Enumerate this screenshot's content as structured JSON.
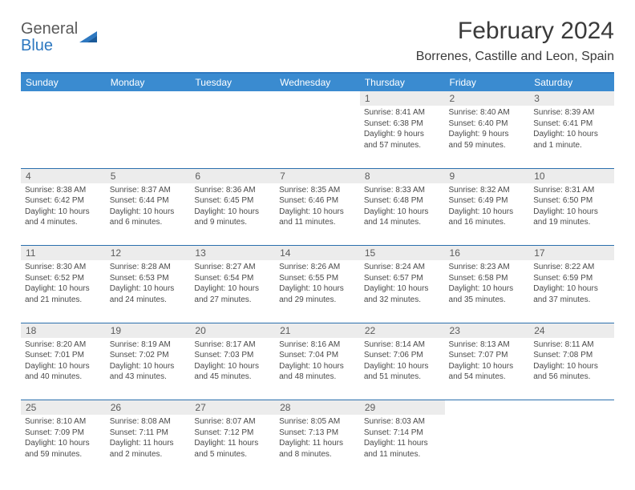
{
  "logo": {
    "word1": "General",
    "word2": "Blue"
  },
  "title": "February 2024",
  "location": "Borrenes, Castille and Leon, Spain",
  "colors": {
    "header_bg": "#3a8bd0",
    "rule": "#2e78c0",
    "daynum_bg": "#ececec",
    "cell_border": "#2b6fad",
    "text": "#4a4a4a"
  },
  "weekdays": [
    "Sunday",
    "Monday",
    "Tuesday",
    "Wednesday",
    "Thursday",
    "Friday",
    "Saturday"
  ],
  "labels": {
    "sunrise": "Sunrise:",
    "sunset": "Sunset:",
    "daylight": "Daylight:"
  },
  "weeks": [
    [
      null,
      null,
      null,
      null,
      {
        "n": "1",
        "sr": "8:41 AM",
        "ss": "6:38 PM",
        "dl1": "9 hours",
        "dl2": "and 57 minutes."
      },
      {
        "n": "2",
        "sr": "8:40 AM",
        "ss": "6:40 PM",
        "dl1": "9 hours",
        "dl2": "and 59 minutes."
      },
      {
        "n": "3",
        "sr": "8:39 AM",
        "ss": "6:41 PM",
        "dl1": "10 hours",
        "dl2": "and 1 minute."
      }
    ],
    [
      {
        "n": "4",
        "sr": "8:38 AM",
        "ss": "6:42 PM",
        "dl1": "10 hours",
        "dl2": "and 4 minutes."
      },
      {
        "n": "5",
        "sr": "8:37 AM",
        "ss": "6:44 PM",
        "dl1": "10 hours",
        "dl2": "and 6 minutes."
      },
      {
        "n": "6",
        "sr": "8:36 AM",
        "ss": "6:45 PM",
        "dl1": "10 hours",
        "dl2": "and 9 minutes."
      },
      {
        "n": "7",
        "sr": "8:35 AM",
        "ss": "6:46 PM",
        "dl1": "10 hours",
        "dl2": "and 11 minutes."
      },
      {
        "n": "8",
        "sr": "8:33 AM",
        "ss": "6:48 PM",
        "dl1": "10 hours",
        "dl2": "and 14 minutes."
      },
      {
        "n": "9",
        "sr": "8:32 AM",
        "ss": "6:49 PM",
        "dl1": "10 hours",
        "dl2": "and 16 minutes."
      },
      {
        "n": "10",
        "sr": "8:31 AM",
        "ss": "6:50 PM",
        "dl1": "10 hours",
        "dl2": "and 19 minutes."
      }
    ],
    [
      {
        "n": "11",
        "sr": "8:30 AM",
        "ss": "6:52 PM",
        "dl1": "10 hours",
        "dl2": "and 21 minutes."
      },
      {
        "n": "12",
        "sr": "8:28 AM",
        "ss": "6:53 PM",
        "dl1": "10 hours",
        "dl2": "and 24 minutes."
      },
      {
        "n": "13",
        "sr": "8:27 AM",
        "ss": "6:54 PM",
        "dl1": "10 hours",
        "dl2": "and 27 minutes."
      },
      {
        "n": "14",
        "sr": "8:26 AM",
        "ss": "6:55 PM",
        "dl1": "10 hours",
        "dl2": "and 29 minutes."
      },
      {
        "n": "15",
        "sr": "8:24 AM",
        "ss": "6:57 PM",
        "dl1": "10 hours",
        "dl2": "and 32 minutes."
      },
      {
        "n": "16",
        "sr": "8:23 AM",
        "ss": "6:58 PM",
        "dl1": "10 hours",
        "dl2": "and 35 minutes."
      },
      {
        "n": "17",
        "sr": "8:22 AM",
        "ss": "6:59 PM",
        "dl1": "10 hours",
        "dl2": "and 37 minutes."
      }
    ],
    [
      {
        "n": "18",
        "sr": "8:20 AM",
        "ss": "7:01 PM",
        "dl1": "10 hours",
        "dl2": "and 40 minutes."
      },
      {
        "n": "19",
        "sr": "8:19 AM",
        "ss": "7:02 PM",
        "dl1": "10 hours",
        "dl2": "and 43 minutes."
      },
      {
        "n": "20",
        "sr": "8:17 AM",
        "ss": "7:03 PM",
        "dl1": "10 hours",
        "dl2": "and 45 minutes."
      },
      {
        "n": "21",
        "sr": "8:16 AM",
        "ss": "7:04 PM",
        "dl1": "10 hours",
        "dl2": "and 48 minutes."
      },
      {
        "n": "22",
        "sr": "8:14 AM",
        "ss": "7:06 PM",
        "dl1": "10 hours",
        "dl2": "and 51 minutes."
      },
      {
        "n": "23",
        "sr": "8:13 AM",
        "ss": "7:07 PM",
        "dl1": "10 hours",
        "dl2": "and 54 minutes."
      },
      {
        "n": "24",
        "sr": "8:11 AM",
        "ss": "7:08 PM",
        "dl1": "10 hours",
        "dl2": "and 56 minutes."
      }
    ],
    [
      {
        "n": "25",
        "sr": "8:10 AM",
        "ss": "7:09 PM",
        "dl1": "10 hours",
        "dl2": "and 59 minutes."
      },
      {
        "n": "26",
        "sr": "8:08 AM",
        "ss": "7:11 PM",
        "dl1": "11 hours",
        "dl2": "and 2 minutes."
      },
      {
        "n": "27",
        "sr": "8:07 AM",
        "ss": "7:12 PM",
        "dl1": "11 hours",
        "dl2": "and 5 minutes."
      },
      {
        "n": "28",
        "sr": "8:05 AM",
        "ss": "7:13 PM",
        "dl1": "11 hours",
        "dl2": "and 8 minutes."
      },
      {
        "n": "29",
        "sr": "8:03 AM",
        "ss": "7:14 PM",
        "dl1": "11 hours",
        "dl2": "and 11 minutes."
      },
      null,
      null
    ]
  ]
}
